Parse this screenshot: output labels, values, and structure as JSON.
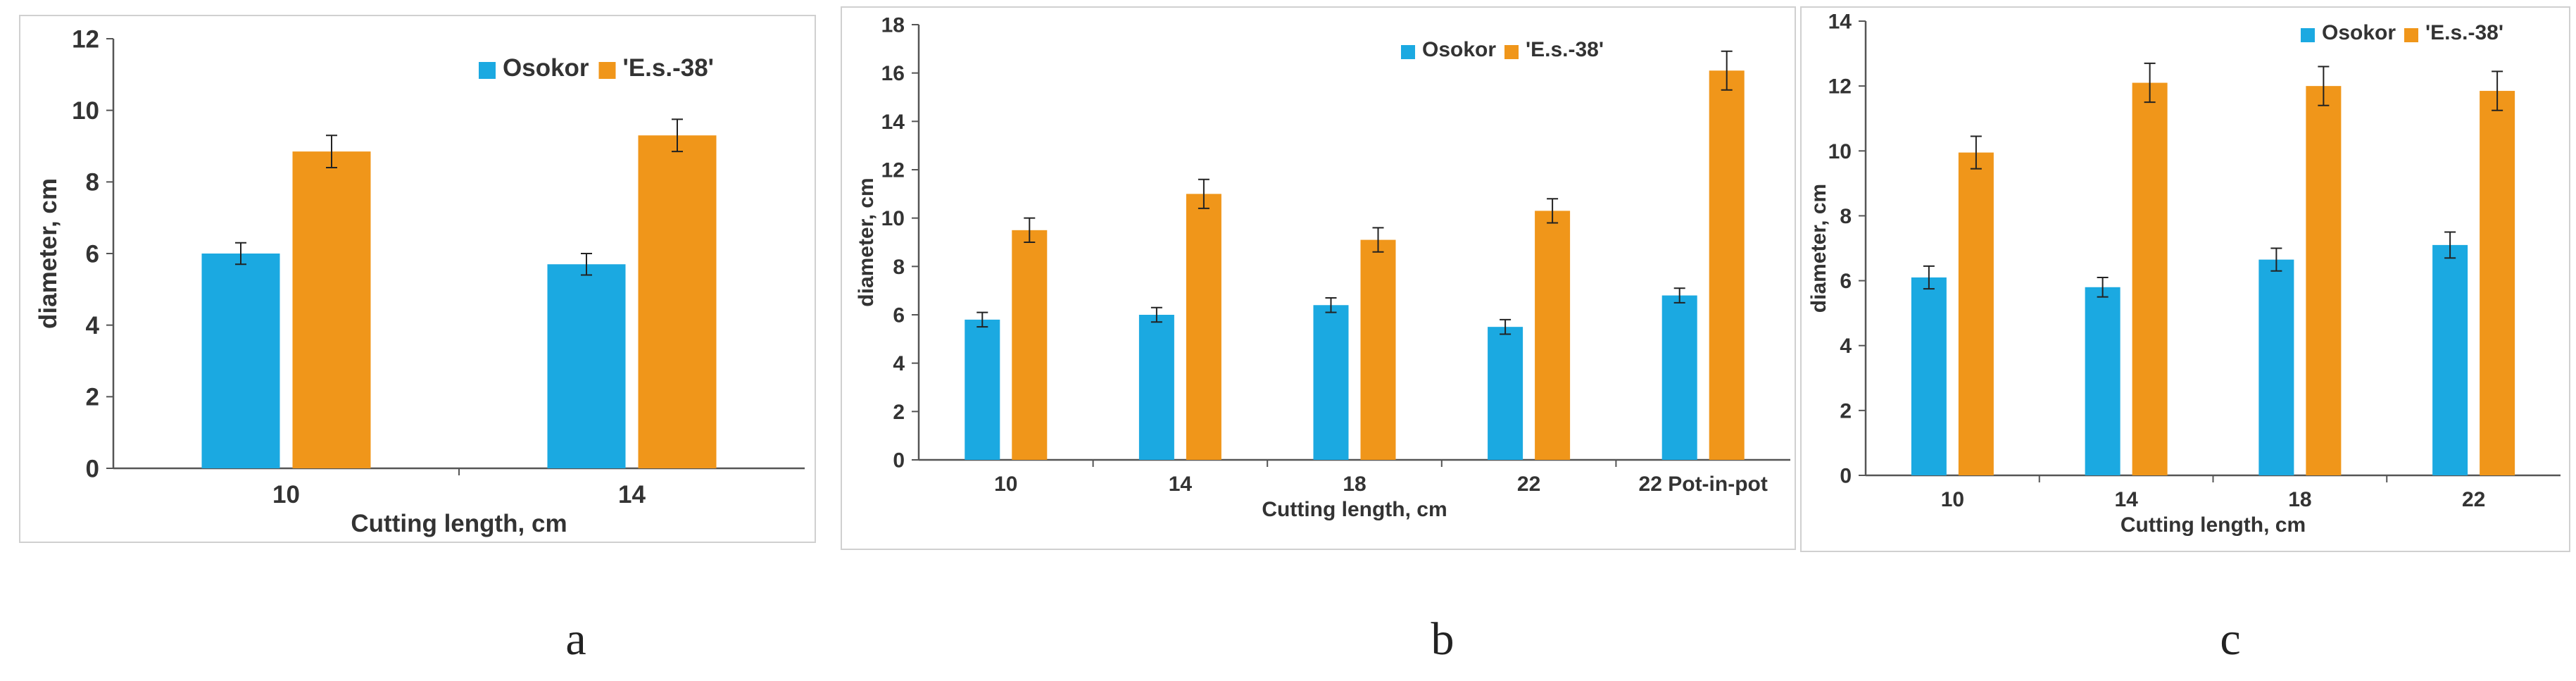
{
  "colors": {
    "osokor": "#1BA9E1",
    "es38": "#F0961A",
    "axis": "#555555",
    "frame": "#d0d0d0",
    "text": "#333333"
  },
  "chart_data": [
    {
      "type": "bar",
      "panel_label": "a",
      "categories": [
        "10",
        "14"
      ],
      "xlabel": "Cutting length, cm",
      "ylabel": "diameter, cm",
      "ylim": [
        0,
        12
      ],
      "yticks": [
        0,
        2,
        4,
        6,
        8,
        10,
        12
      ],
      "legend": "top-right",
      "grid": false,
      "series": [
        {
          "name": "Osokor",
          "values": [
            6.0,
            5.7
          ],
          "errors": [
            0.3,
            0.3
          ]
        },
        {
          "name": "'E.s.-38'",
          "values": [
            8.85,
            9.3
          ],
          "errors": [
            0.45,
            0.45
          ]
        }
      ]
    },
    {
      "type": "bar",
      "panel_label": "b",
      "categories": [
        "10",
        "14",
        "18",
        "22",
        "22 Pot-in-pot"
      ],
      "xlabel": "Cutting length, cm",
      "ylabel": "diameter, cm",
      "ylim": [
        0,
        18
      ],
      "yticks": [
        0,
        2,
        4,
        6,
        8,
        10,
        12,
        14,
        16,
        18
      ],
      "legend": "top-right",
      "grid": false,
      "series": [
        {
          "name": "Osokor",
          "values": [
            5.8,
            6.0,
            6.4,
            5.5,
            6.8
          ],
          "errors": [
            0.3,
            0.3,
            0.3,
            0.3,
            0.3
          ]
        },
        {
          "name": "'E.s.-38'",
          "values": [
            9.5,
            11.0,
            9.1,
            10.3,
            16.1
          ],
          "errors": [
            0.5,
            0.6,
            0.5,
            0.5,
            0.8
          ]
        }
      ]
    },
    {
      "type": "bar",
      "panel_label": "c",
      "categories": [
        "10",
        "14",
        "18",
        "22"
      ],
      "xlabel": "Cutting length, cm",
      "ylabel": "diameter, cm",
      "ylim": [
        0,
        14
      ],
      "yticks": [
        0,
        2,
        4,
        6,
        8,
        10,
        12,
        14
      ],
      "legend": "top-right",
      "grid": false,
      "series": [
        {
          "name": "Osokor",
          "values": [
            6.1,
            5.8,
            6.65,
            7.1
          ],
          "errors": [
            0.35,
            0.3,
            0.35,
            0.4
          ]
        },
        {
          "name": "'E.s.-38'",
          "values": [
            9.95,
            12.1,
            12.0,
            11.85
          ],
          "errors": [
            0.5,
            0.6,
            0.6,
            0.6
          ]
        }
      ]
    }
  ]
}
